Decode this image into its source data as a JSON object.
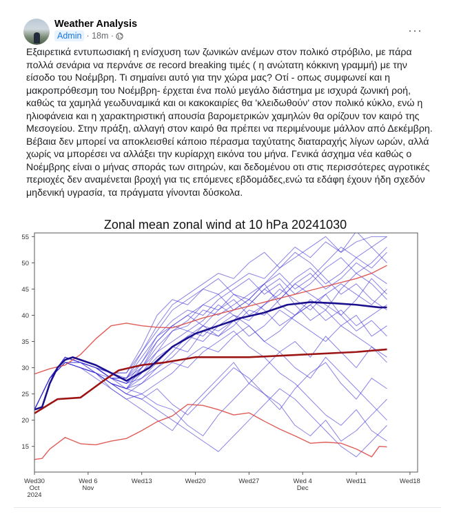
{
  "post": {
    "author": "Weather Analysis",
    "role_badge": "Admin",
    "time": "· 18m ·",
    "privacy_icon": "globe-icon",
    "more_icon": "···",
    "text_lines": [
      "Εξαιρετικά εντυπωσιακή η ενίσχυση των ζωνικών ανέμων στον πολικό στρόβιλο, με πάρα",
      "πολλά σενάρια να περνάνε σε record breaking τιμές ( η ανώτατη κόκκινη γραμμή) με την",
      "είσοδο του Νοέμβρη. Τι σημαίνει αυτό για την χώρα μας? Οτί - οπως συμφωνεί και η",
      "μακροπρόθεσμη του Νοέμβρη- έρχεται ένα πολύ μεγάλο διάστημα με ισχυρά ζωνική ροή,",
      "καθώς τα χαμηλά γεωδυναμικά και οι κακοκαιρίες θα 'κλειδωθούν' στον πολικό κύκλο,  ενώ η",
      "ηλιοφάνεια και η χαρακτηριστική απουσία βαρομετρικών χαμηλών θα ορίζουν τον καιρό της",
      "Μεσογείου. Στην πράξη, αλλαγή στον καιρό θα πρέπει να περιμένουμε μάλλον από Δεκέμβρη.",
      "Βέβαια δεν μπορεί να αποκλεισθεί κάποιο πέρασμα ταχύτατης διαταραχής λίγων ωρών, αλλά",
      "χωρίς να μπορέσει να αλλάξει την κυρίαρχη εικόνα του μήνα. Γενικά άσχημα νέα καθώς ο",
      "Νοέμβρης είναι ο μήνας σποράς των σιτηρών, και δεδομένου οτι στις περισσότερες αγροτικές",
      "περιοχές δεν αναμένεται βροχή για τις επόμενες εβδομάδες,ενώ τα εδάφη έχουν ήδη σχεδόν",
      "μηδενική υγρασία,  τα πράγματα γίνονται δύσκολα."
    ]
  },
  "chart_data": {
    "type": "line",
    "title": "Zonal mean zonal wind at 10 hPa 20241030",
    "xlabel": "",
    "ylabel": "",
    "x_unit": "days since Wed 30 Oct 2024",
    "xlim": [
      0,
      50
    ],
    "ylim": [
      10.1,
      55.7
    ],
    "grid": false,
    "y_ticks": [
      15,
      20,
      25,
      30,
      35,
      40,
      45,
      50,
      55
    ],
    "x_ticks": [
      {
        "day": 0,
        "label": [
          "Wed30",
          "Oct",
          "2024"
        ]
      },
      {
        "day": 7,
        "label": [
          "Wed 6",
          "Nov"
        ]
      },
      {
        "day": 14,
        "label": [
          "Wed13"
        ]
      },
      {
        "day": 21,
        "label": [
          "Wed20"
        ]
      },
      {
        "day": 28,
        "label": [
          "Wed27"
        ]
      },
      {
        "day": 35,
        "label": [
          "Wed 4",
          "Dec"
        ]
      },
      {
        "day": 42,
        "label": [
          "Wed11"
        ]
      },
      {
        "day": 49,
        "label": [
          "Wed18"
        ]
      }
    ],
    "colors": {
      "member": "#3a2fd6",
      "ens_mean": "#1a0f8c",
      "clim_mean": "#9c1414",
      "clim_extreme": "#d9403a"
    },
    "member_days": [
      0,
      2,
      4,
      6,
      8,
      10,
      12,
      14,
      16,
      18,
      20,
      22,
      24,
      26,
      28,
      30,
      32,
      34,
      36,
      38,
      40,
      42,
      44,
      46
    ],
    "members": [
      [
        22,
        28,
        32,
        31,
        30,
        28,
        28,
        33,
        38,
        42,
        44,
        46,
        48,
        47,
        50,
        52,
        49,
        51,
        53,
        55,
        52,
        54,
        55,
        55
      ],
      [
        22,
        28,
        32,
        31,
        29,
        27,
        26,
        30,
        35,
        38,
        40,
        42,
        41,
        44,
        43,
        46,
        48,
        45,
        47,
        50,
        53,
        51,
        49,
        52
      ],
      [
        22,
        28,
        31,
        31,
        30,
        29,
        29,
        34,
        40,
        43,
        42,
        45,
        47,
        44,
        42,
        45,
        43,
        46,
        48,
        45,
        47,
        50,
        48,
        46
      ],
      [
        22,
        28,
        31,
        30,
        29,
        27,
        25,
        27,
        30,
        33,
        36,
        35,
        38,
        40,
        39,
        42,
        45,
        43,
        41,
        44,
        46,
        44,
        42,
        45
      ],
      [
        22,
        28,
        32,
        31,
        30,
        28,
        27,
        29,
        32,
        34,
        33,
        37,
        36,
        38,
        41,
        40,
        43,
        46,
        44,
        42,
        40,
        43,
        47,
        44
      ],
      [
        22,
        28,
        31,
        30,
        29,
        26,
        24,
        25,
        27,
        29,
        32,
        34,
        33,
        36,
        38,
        35,
        37,
        40,
        42,
        39,
        41,
        38,
        40,
        42
      ],
      [
        22,
        28,
        31,
        31,
        30,
        28,
        27,
        31,
        36,
        39,
        41,
        40,
        43,
        45,
        47,
        44,
        46,
        42,
        39,
        41,
        38,
        40,
        36,
        38
      ],
      [
        22,
        28,
        32,
        31,
        30,
        29,
        28,
        30,
        33,
        37,
        38,
        41,
        40,
        42,
        44,
        46,
        42,
        40,
        43,
        41,
        45,
        48,
        46,
        43
      ],
      [
        22,
        28,
        31,
        30,
        28,
        26,
        24,
        22,
        20,
        18,
        22,
        25,
        28,
        31,
        27,
        30,
        33,
        35,
        32,
        36,
        33,
        30,
        34,
        31
      ],
      [
        22,
        28,
        31,
        30,
        29,
        27,
        26,
        25,
        23,
        22,
        19,
        17,
        21,
        24,
        27,
        25,
        22,
        26,
        29,
        31,
        27,
        24,
        28,
        26
      ],
      [
        22,
        28,
        31,
        31,
        30,
        28,
        28,
        32,
        36,
        38,
        37,
        39,
        42,
        40,
        38,
        35,
        33,
        30,
        28,
        32,
        29,
        26,
        23,
        20
      ],
      [
        22,
        28,
        32,
        31,
        29,
        27,
        25,
        24,
        22,
        20,
        18,
        16,
        14,
        17,
        20,
        23,
        26,
        24,
        21,
        18,
        15,
        13,
        16,
        19
      ],
      [
        22,
        28,
        31,
        30,
        29,
        27,
        26,
        28,
        31,
        34,
        36,
        38,
        41,
        43,
        40,
        42,
        44,
        47,
        49,
        46,
        48,
        51,
        53,
        50
      ],
      [
        22,
        28,
        31,
        31,
        30,
        28,
        27,
        28,
        30,
        32,
        35,
        38,
        36,
        39,
        42,
        45,
        47,
        44,
        46,
        49,
        51,
        48,
        50,
        53
      ],
      [
        22,
        28,
        32,
        31,
        30,
        28,
        26,
        27,
        29,
        31,
        30,
        33,
        35,
        37,
        34,
        32,
        29,
        27,
        24,
        21,
        19,
        22,
        18,
        16
      ],
      [
        22,
        28,
        31,
        30,
        29,
        28,
        27,
        30,
        34,
        37,
        39,
        42,
        44,
        41,
        43,
        46,
        49,
        52,
        50,
        47,
        44,
        46,
        43,
        41
      ],
      [
        22,
        28,
        31,
        31,
        30,
        28,
        28,
        31,
        35,
        38,
        40,
        38,
        37,
        39,
        36,
        38,
        41,
        39,
        37,
        35,
        38,
        36,
        34,
        32
      ],
      [
        22,
        28,
        31,
        30,
        29,
        27,
        25,
        24,
        26,
        23,
        21,
        24,
        27,
        30,
        28,
        25,
        23,
        19,
        17,
        20,
        16,
        18,
        21,
        24
      ],
      [
        22,
        28,
        32,
        31,
        30,
        29,
        29,
        33,
        37,
        41,
        43,
        45,
        44,
        46,
        48,
        47,
        50,
        53,
        51,
        54,
        52,
        56,
        53,
        55
      ],
      [
        22,
        28,
        31,
        30,
        29,
        27,
        26,
        29,
        33,
        35,
        37,
        36,
        39,
        41,
        43,
        41,
        38,
        40,
        42,
        44,
        40,
        37,
        39,
        36
      ]
    ],
    "ensemble_mean": {
      "x": [
        0,
        1,
        2,
        3,
        4,
        5,
        6,
        8,
        10,
        12,
        15,
        18,
        21,
        24,
        27,
        30,
        33,
        36,
        39,
        42,
        45,
        46
      ],
      "y": [
        22,
        22.5,
        27,
        30,
        31.5,
        32,
        31.5,
        30.5,
        29,
        27.5,
        30,
        34,
        36.5,
        38,
        39.5,
        40.5,
        42,
        42.5,
        42.3,
        42,
        41.5,
        41.5
      ]
    },
    "climatology_mean": {
      "x": [
        0,
        3,
        6,
        9,
        11,
        14,
        17,
        21,
        28,
        35,
        42,
        46
      ],
      "y": [
        21.3,
        24,
        24.3,
        27.5,
        29.5,
        30.5,
        31,
        32,
        32,
        32.5,
        33,
        33.5
      ]
    },
    "climatology_max": {
      "x": [
        0,
        2,
        4,
        6,
        8,
        10,
        12,
        14,
        16,
        18,
        22,
        26,
        30,
        34,
        38,
        42,
        44,
        46
      ],
      "y": [
        28.8,
        29.8,
        30.5,
        32.5,
        35.5,
        38,
        38.5,
        38,
        37.7,
        37.6,
        39.5,
        41,
        42.5,
        44,
        45.5,
        47,
        48,
        49.5
      ]
    },
    "climatology_min": {
      "x": [
        0,
        1,
        2,
        4,
        6,
        8,
        10,
        12,
        14,
        16,
        18,
        20,
        22,
        24,
        26,
        28,
        30,
        32,
        34,
        36,
        38,
        40,
        42,
        44,
        45,
        46
      ],
      "y": [
        12.5,
        12.7,
        14.5,
        16.7,
        15.5,
        15.3,
        16,
        16.5,
        18,
        19.7,
        20.8,
        23,
        22.8,
        22,
        21,
        21.4,
        19.8,
        18.3,
        17,
        15.6,
        15.8,
        15.6,
        14.5,
        13,
        15,
        14.9
      ]
    }
  }
}
